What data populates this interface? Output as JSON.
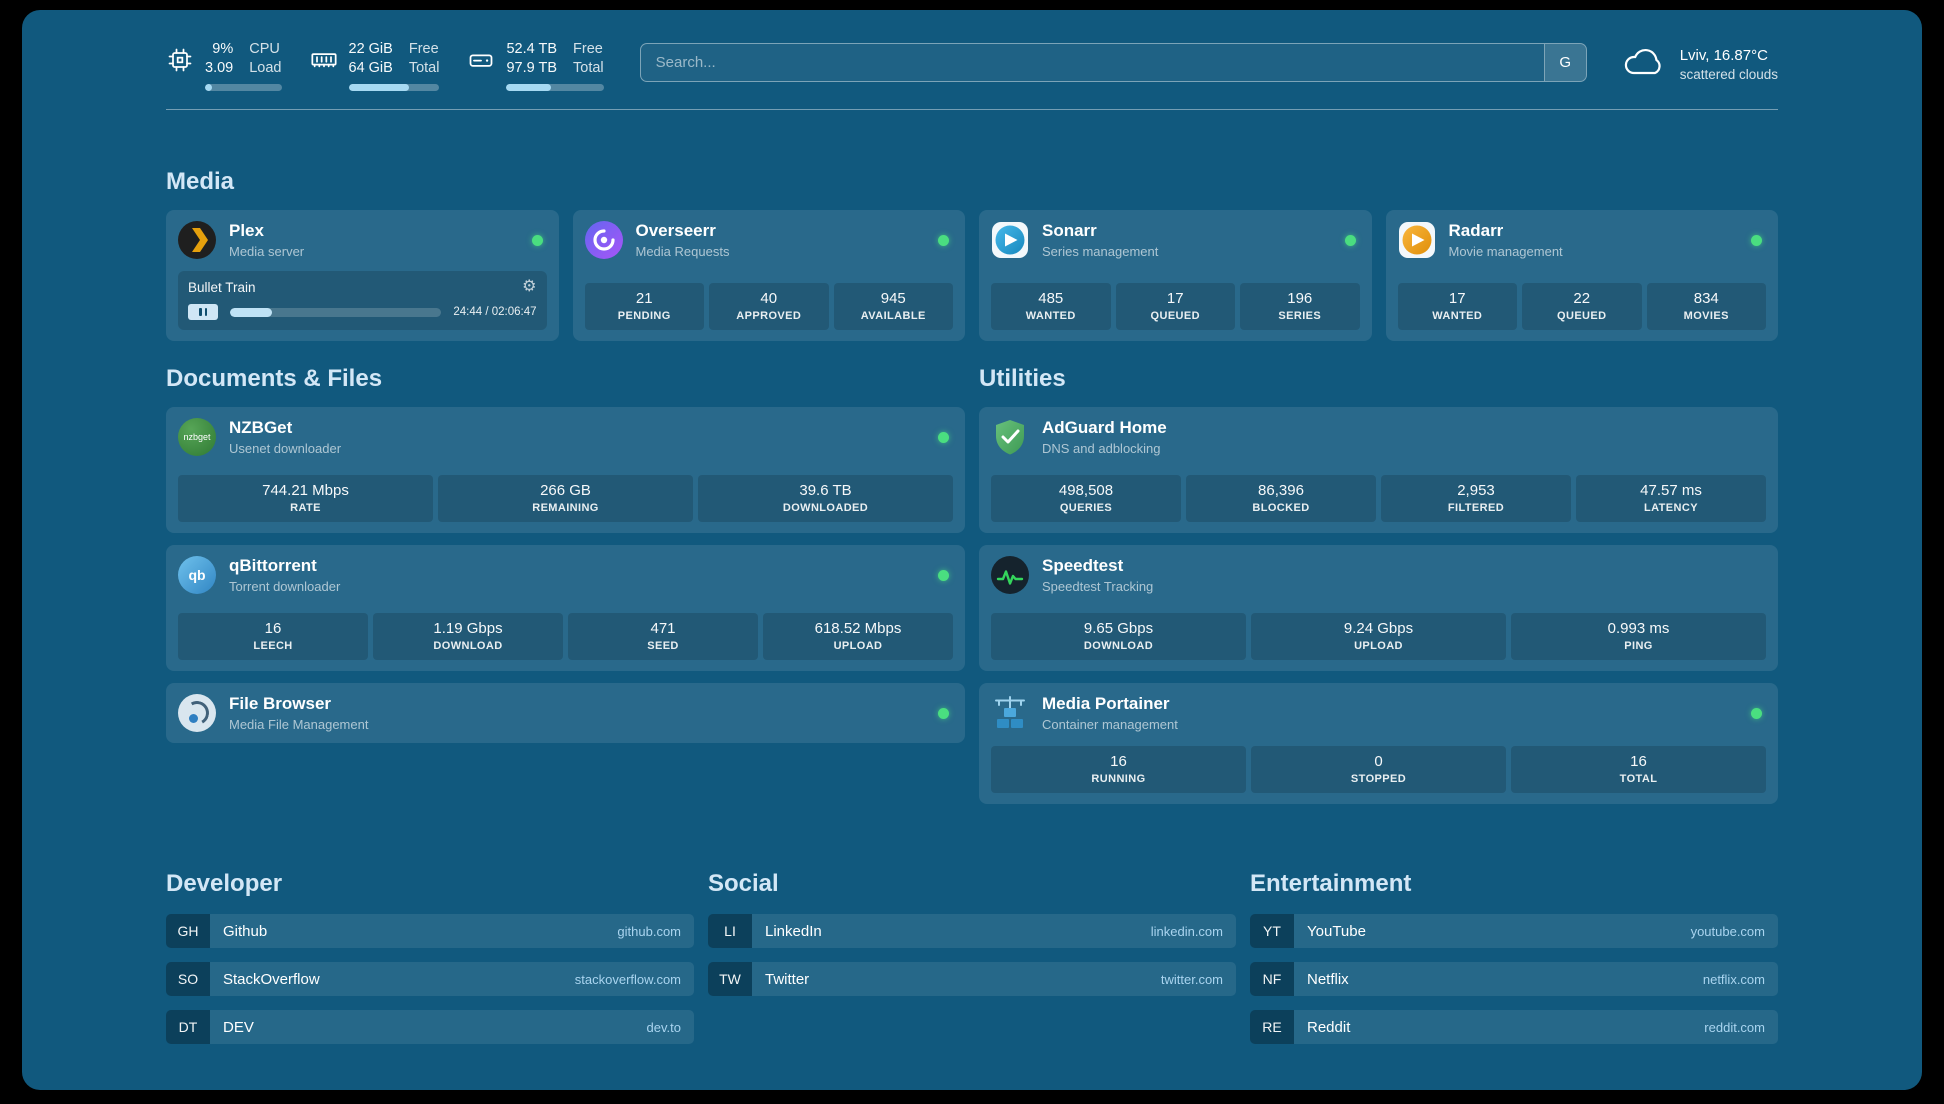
{
  "topbar": {
    "cpu": {
      "value_top": "9%",
      "value_bottom": "3.09",
      "label_top": "CPU",
      "label_bottom": "Load",
      "progress_pct": 9
    },
    "memory": {
      "value_top": "22 GiB",
      "value_bottom": "64 GiB",
      "label_top": "Free",
      "label_bottom": "Total",
      "progress_pct": 66
    },
    "disk": {
      "value_top": "52.4 TB",
      "value_bottom": "97.9 TB",
      "label_top": "Free",
      "label_bottom": "Total",
      "progress_pct": 46
    },
    "search": {
      "placeholder": "Search...",
      "button_label": "G"
    },
    "weather": {
      "location": "Lviv, 16.87°C",
      "condition": "scattered clouds"
    }
  },
  "section_titles": {
    "media": "Media",
    "documents": "Documents & Files",
    "utilities": "Utilities",
    "developer": "Developer",
    "social": "Social",
    "entertainment": "Entertainment"
  },
  "icons": {
    "gear": "⚙"
  },
  "services": {
    "plex": {
      "name": "Plex",
      "description": "Media server",
      "now_playing": {
        "title": "Bullet Train",
        "time": "24:44 / 02:06:47",
        "progress_pct": 20
      }
    },
    "overseerr": {
      "name": "Overseerr",
      "description": "Media Requests",
      "stats": [
        {
          "value": "21",
          "label": "PENDING"
        },
        {
          "value": "40",
          "label": "APPROVED"
        },
        {
          "value": "945",
          "label": "AVAILABLE"
        }
      ]
    },
    "sonarr": {
      "name": "Sonarr",
      "description": "Series management",
      "stats": [
        {
          "value": "485",
          "label": "WANTED"
        },
        {
          "value": "17",
          "label": "QUEUED"
        },
        {
          "value": "196",
          "label": "SERIES"
        }
      ]
    },
    "radarr": {
      "name": "Radarr",
      "description": "Movie management",
      "stats": [
        {
          "value": "17",
          "label": "WANTED"
        },
        {
          "value": "22",
          "label": "QUEUED"
        },
        {
          "value": "834",
          "label": "MOVIES"
        }
      ]
    },
    "nzbget": {
      "name": "NZBGet",
      "description": "Usenet downloader",
      "icon_text": "nzbget",
      "stats": [
        {
          "value": "744.21 Mbps",
          "label": "RATE"
        },
        {
          "value": "266 GB",
          "label": "REMAINING"
        },
        {
          "value": "39.6 TB",
          "label": "DOWNLOADED"
        }
      ]
    },
    "qbittorrent": {
      "name": "qBittorrent",
      "description": "Torrent downloader",
      "icon_text": "qb",
      "stats": [
        {
          "value": "16",
          "label": "LEECH"
        },
        {
          "value": "1.19 Gbps",
          "label": "DOWNLOAD"
        },
        {
          "value": "471",
          "label": "SEED"
        },
        {
          "value": "618.52 Mbps",
          "label": "UPLOAD"
        }
      ]
    },
    "filebrowser": {
      "name": "File Browser",
      "description": "Media File Management"
    },
    "adguard": {
      "name": "AdGuard Home",
      "description": "DNS and adblocking",
      "stats": [
        {
          "value": "498,508",
          "label": "QUERIES"
        },
        {
          "value": "86,396",
          "label": "BLOCKED"
        },
        {
          "value": "2,953",
          "label": "FILTERED"
        },
        {
          "value": "47.57 ms",
          "label": "LATENCY"
        }
      ]
    },
    "speedtest": {
      "name": "Speedtest",
      "description": "Speedtest Tracking",
      "stats": [
        {
          "value": "9.65 Gbps",
          "label": "DOWNLOAD"
        },
        {
          "value": "9.24 Gbps",
          "label": "UPLOAD"
        },
        {
          "value": "0.993 ms",
          "label": "PING"
        }
      ]
    },
    "portainer": {
      "name": "Media Portainer",
      "description": "Container management",
      "stats": [
        {
          "value": "16",
          "label": "RUNNING"
        },
        {
          "value": "0",
          "label": "STOPPED"
        },
        {
          "value": "16",
          "label": "TOTAL"
        }
      ]
    }
  },
  "bookmarks": {
    "developer": [
      {
        "abbr": "GH",
        "name": "Github",
        "url": "github.com"
      },
      {
        "abbr": "SO",
        "name": "StackOverflow",
        "url": "stackoverflow.com"
      },
      {
        "abbr": "DT",
        "name": "DEV",
        "url": "dev.to"
      }
    ],
    "social": [
      {
        "abbr": "LI",
        "name": "LinkedIn",
        "url": "linkedin.com"
      },
      {
        "abbr": "TW",
        "name": "Twitter",
        "url": "twitter.com"
      }
    ],
    "entertainment": [
      {
        "abbr": "YT",
        "name": "YouTube",
        "url": "youtube.com"
      },
      {
        "abbr": "NF",
        "name": "Netflix",
        "url": "netflix.com"
      },
      {
        "abbr": "RE",
        "name": "Reddit",
        "url": "reddit.com"
      }
    ]
  },
  "colors": {
    "status_ok": "#4ade80",
    "page_bg": "#11597e"
  }
}
